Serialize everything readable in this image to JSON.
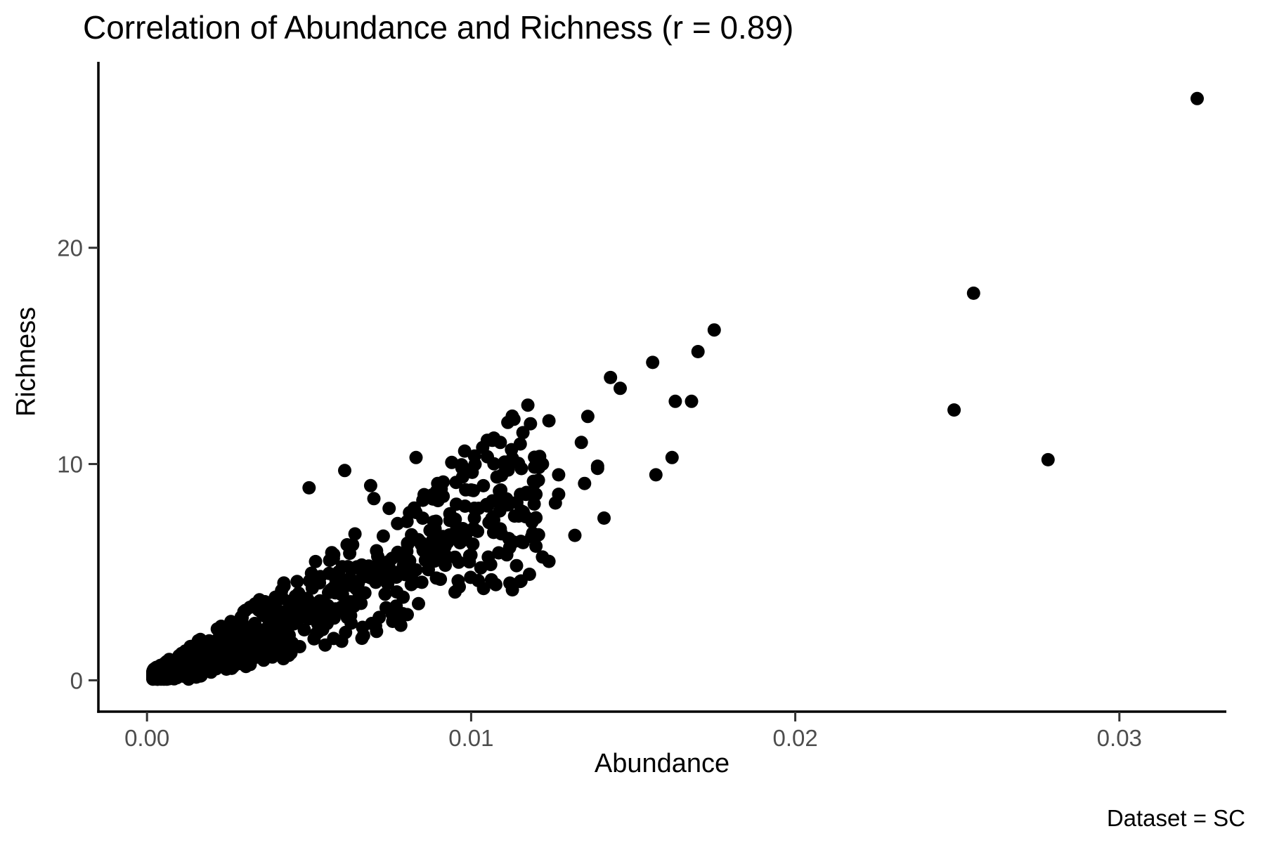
{
  "title": "Correlation of Abundance and Richness (r = 0.89)",
  "caption": "Dataset = SC",
  "styles": {
    "background": "#ffffff",
    "text_color": "#000000",
    "tick_label_color": "#4d4d4d",
    "axis_color": "#000000",
    "point_color": "#000000"
  },
  "chart_data": {
    "type": "scatter",
    "title": "Correlation of Abundance and Richness (r = 0.89)",
    "xlabel": "Abundance",
    "ylabel": "Richness",
    "caption": "Dataset = SC",
    "correlation_r": 0.89,
    "legend": "none",
    "grid": false,
    "xlim": [
      -0.0015,
      0.0333
    ],
    "ylim": [
      -1.45,
      28.6
    ],
    "x_ticks": {
      "values": [
        0,
        0.01,
        0.02,
        0.03
      ],
      "labels": [
        "0.00",
        "0.01",
        "0.02",
        "0.03"
      ]
    },
    "y_ticks": {
      "values": [
        0,
        10,
        20
      ],
      "labels": [
        "0",
        "10",
        "20"
      ]
    },
    "point_color": "#000000",
    "point_radius_px": 9.5,
    "notable_points": [
      [
        0.0324,
        26.9
      ],
      [
        0.0255,
        17.9
      ],
      [
        0.0249,
        12.5
      ],
      [
        0.0278,
        10.2
      ],
      [
        0.0175,
        16.2
      ],
      [
        0.017,
        15.2
      ],
      [
        0.0156,
        14.7
      ],
      [
        0.0146,
        13.5
      ],
      [
        0.0143,
        14.0
      ],
      [
        0.0163,
        12.9
      ],
      [
        0.0168,
        12.9
      ],
      [
        0.0136,
        12.2
      ],
      [
        0.0124,
        12.0
      ],
      [
        0.0134,
        11.0
      ],
      [
        0.0162,
        10.3
      ],
      [
        0.0157,
        9.5
      ],
      [
        0.0139,
        9.9
      ],
      [
        0.0121,
        10.0
      ],
      [
        0.0122,
        10.0
      ],
      [
        0.0127,
        9.5
      ],
      [
        0.0139,
        9.8
      ],
      [
        0.0135,
        9.1
      ],
      [
        0.012,
        8.6
      ],
      [
        0.0127,
        8.6
      ],
      [
        0.0126,
        8.2
      ],
      [
        0.0141,
        7.5
      ],
      [
        0.0132,
        6.7
      ],
      [
        0.0119,
        6.8
      ],
      [
        0.012,
        6.2
      ],
      [
        0.0122,
        5.7
      ],
      [
        0.0124,
        5.5
      ],
      [
        0.0118,
        4.9
      ],
      [
        0.0114,
        5.3
      ],
      [
        0.005,
        8.9
      ],
      [
        0.0061,
        9.7
      ],
      [
        0.0069,
        9.0
      ],
      [
        0.007,
        8.4
      ],
      [
        0.0083,
        10.3
      ],
      [
        0.0098,
        10.6
      ],
      [
        0.0107,
        11.2
      ],
      [
        0.0105,
        11.1
      ],
      [
        0.0109,
        11.0
      ],
      [
        0.01,
        8.8
      ],
      [
        0.0101,
        7.5
      ],
      [
        0.0109,
        7.0
      ],
      [
        0.0113,
        6.4
      ],
      [
        0.0096,
        4.6
      ],
      [
        0.0103,
        5.2
      ],
      [
        0.0111,
        5.8
      ]
    ],
    "dense_cluster": {
      "description": "Dense cone-shaped cloud of ~950 overlapping points rising from the origin, approximately y = 600x + 12000x^2 with spread growing with x",
      "n": 950,
      "seed": 42,
      "x_min": 0.00018,
      "x_max": 0.0122,
      "x_power": 2.4,
      "slope_linear": 600,
      "slope_quad": 12000,
      "spread_base": 0.25,
      "spread_per_x": 260,
      "y_floor": 0.05
    }
  }
}
